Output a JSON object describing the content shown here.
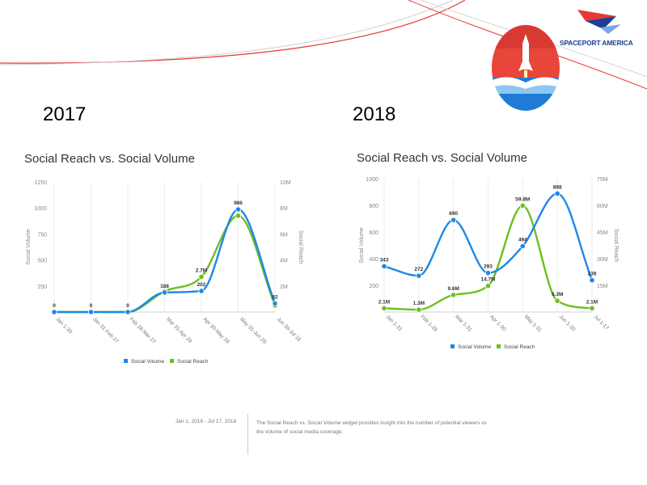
{
  "brand": {
    "wordmark": "SPACEPORT AMERICA"
  },
  "years": {
    "left": "2017",
    "right": "2018"
  },
  "footer": {
    "date_range": "Jan 1, 2018 - Jul 17, 2018",
    "description": "The Social Reach vs. Social Volume widget provides insight into the number of potential viewers vs the volume of social media coverage."
  },
  "colors": {
    "volume": "#1e88e5",
    "reach": "#6cbf1f",
    "swoosh": "#e53935"
  },
  "chart_data": [
    {
      "type": "line",
      "title": "Social Reach vs. Social Volume",
      "categories": [
        "Jan 1-30",
        "Jan 31-Feb 27",
        "Feb 28-Mar 27",
        "Mar 31-Apr 29",
        "Apr 30-May 29",
        "May 31-Jun 29",
        "Jun 30-Jul 16"
      ],
      "ylabel": "Social Volume",
      "y2label": "Social Reach",
      "ylim": [
        0,
        1250
      ],
      "y2lim": [
        0,
        10000000
      ],
      "yticks": [
        "250",
        "500",
        "750",
        "1000",
        "1250"
      ],
      "y2ticks": [
        "2M",
        "4M",
        "6M",
        "8M",
        "10M"
      ],
      "series": [
        {
          "name": "Social Volume",
          "axis": "left",
          "values": [
            0,
            0,
            0,
            188,
            202,
            986,
            82
          ],
          "labels": [
            "0",
            "0",
            "0",
            "188",
            "202",
            "986",
            "82"
          ]
        },
        {
          "name": "Social Reach",
          "axis": "right",
          "values": [
            0,
            0,
            0,
            1600000,
            2700000,
            7400000,
            500000
          ],
          "labels": [
            "",
            "",
            "",
            "",
            "2.7M",
            "",
            ""
          ]
        }
      ],
      "legend": "bottom"
    },
    {
      "type": "line",
      "title": "Social Reach vs. Social Volume",
      "categories": [
        "Jan 1-31",
        "Feb 1-28",
        "Mar 1-31",
        "Apr 1-30",
        "May 1-31",
        "Jun 1-30",
        "Jul 1-17"
      ],
      "ylabel": "Social Volume",
      "y2label": "Social Reach",
      "ylim": [
        0,
        1000
      ],
      "y2lim": [
        0,
        75000000
      ],
      "yticks": [
        "200",
        "400",
        "600",
        "800",
        "1000"
      ],
      "y2ticks": [
        "15M",
        "30M",
        "45M",
        "60M",
        "75M"
      ],
      "series": [
        {
          "name": "Social Volume",
          "axis": "left",
          "values": [
            343,
            272,
            690,
            293,
            494,
            888,
            238
          ],
          "labels": [
            "343",
            "272",
            "690",
            "293",
            "494",
            "888",
            "238"
          ]
        },
        {
          "name": "Social Reach",
          "axis": "right",
          "values": [
            2100000,
            1300000,
            9600000,
            14700000,
            59800000,
            6300000,
            2100000
          ],
          "labels": [
            "2.1M",
            "1.3M",
            "9.6M",
            "14.7M",
            "59.8M",
            "6.3M",
            "2.1M"
          ]
        }
      ],
      "legend": "bottom"
    }
  ]
}
